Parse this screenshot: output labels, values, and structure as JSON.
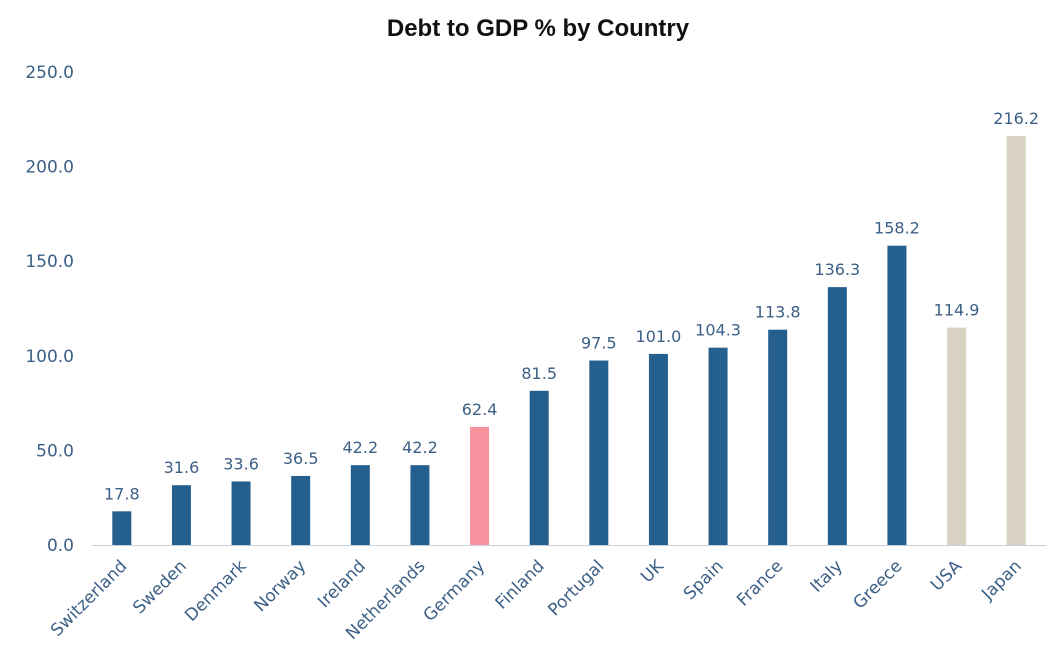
{
  "chart_data": {
    "type": "bar",
    "title": "Debt to GDP % by Country",
    "xlabel": "",
    "ylabel": "",
    "ylim": [
      0,
      250
    ],
    "yticks": [
      "0.0",
      "50.0",
      "100.0",
      "150.0",
      "200.0",
      "250.0"
    ],
    "grid": false,
    "categories": [
      "Switzerland",
      "Sweden",
      "Denmark",
      "Norway",
      "Ireland",
      "Netherlands",
      "Germany",
      "Finland",
      "Portugal",
      "UK",
      "Spain",
      "France",
      "Italy",
      "Greece",
      "USA",
      "Japan"
    ],
    "values": [
      17.8,
      31.6,
      33.6,
      36.5,
      42.2,
      42.2,
      62.4,
      81.5,
      97.5,
      101.0,
      104.3,
      113.8,
      136.3,
      158.2,
      114.9,
      216.2
    ],
    "data_labels": [
      "17.8",
      "31.6",
      "33.6",
      "36.5",
      "42.2",
      "42.2",
      "62.4",
      "81.5",
      "97.5",
      "101.0",
      "104.3",
      "113.8",
      "136.3",
      "158.2",
      "114.9",
      "216.2"
    ],
    "colors": [
      "#255f8e",
      "#255f8e",
      "#255f8e",
      "#255f8e",
      "#255f8e",
      "#255f8e",
      "#f7919e",
      "#255f8e",
      "#255f8e",
      "#255f8e",
      "#255f8e",
      "#255f8e",
      "#255f8e",
      "#255f8e",
      "#d8d3c3",
      "#d8d3c3"
    ]
  }
}
